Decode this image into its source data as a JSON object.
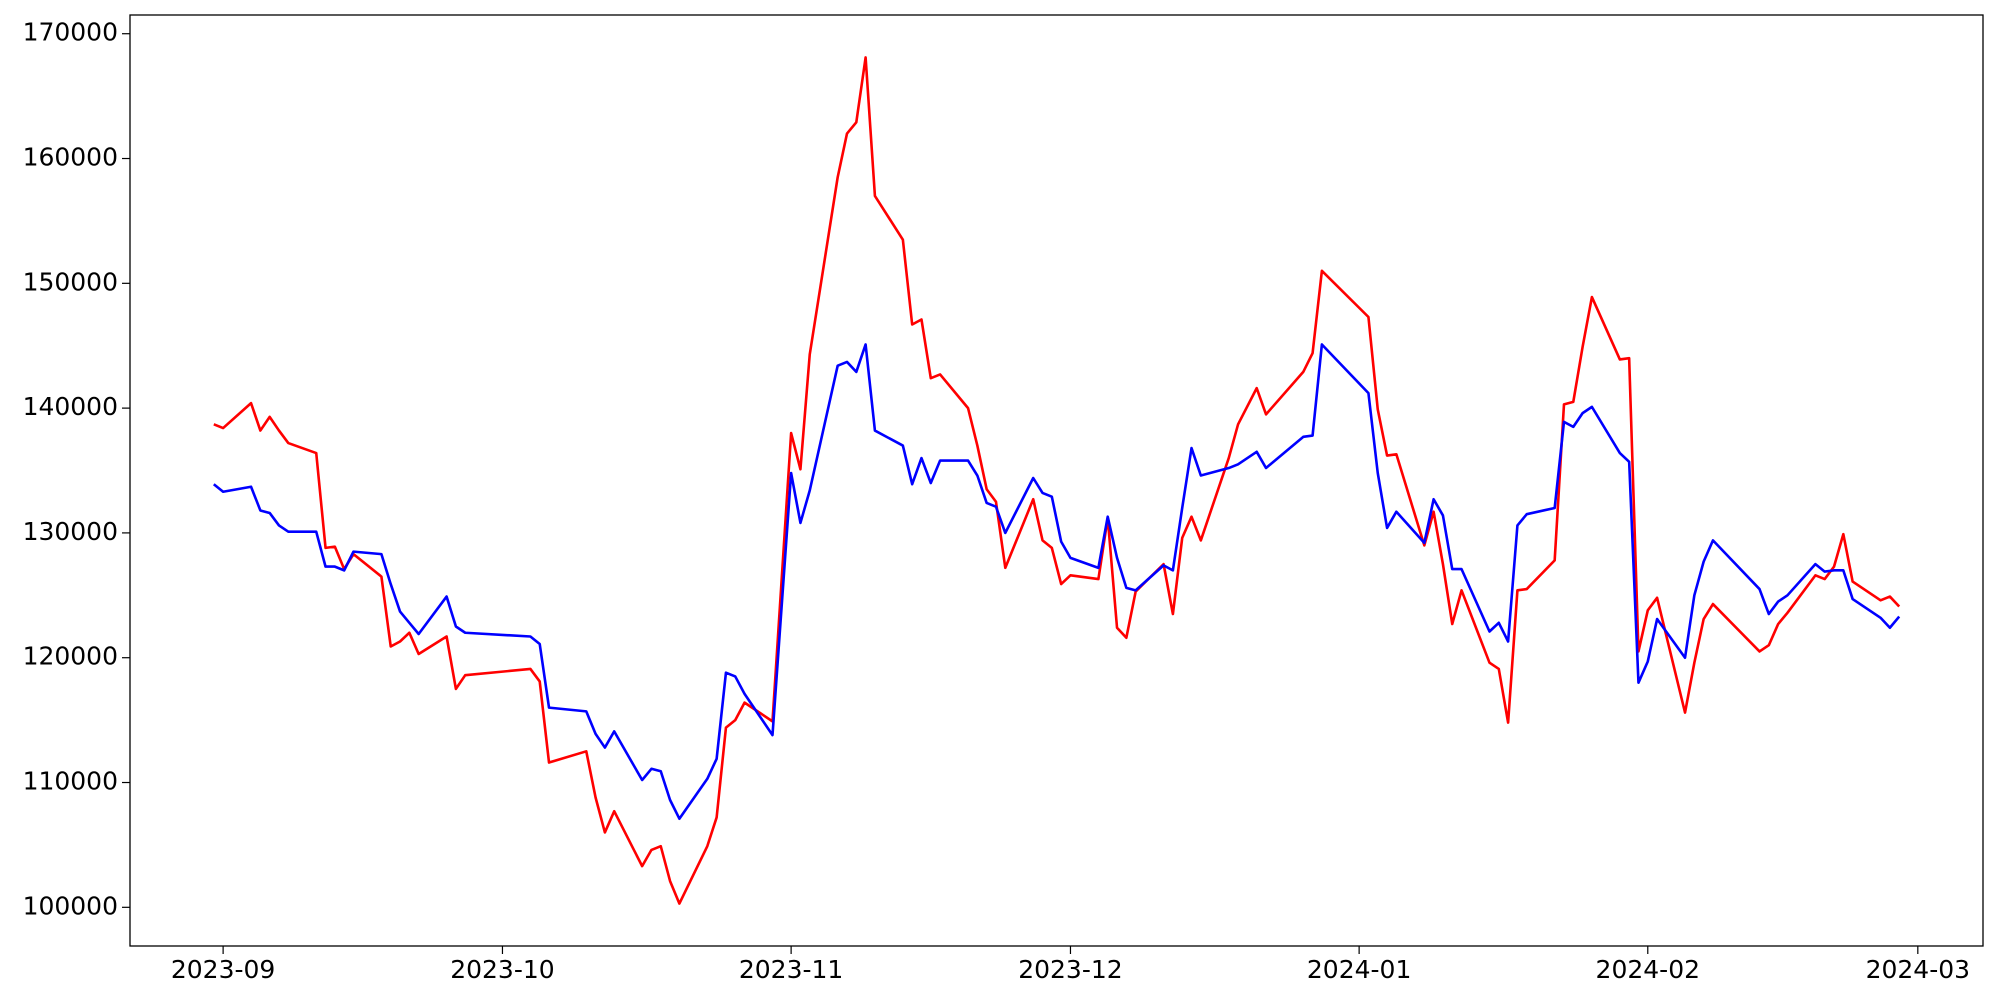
{
  "chart_data": {
    "type": "line",
    "x": [
      -1,
      0,
      3,
      4,
      5,
      6,
      7,
      10,
      11,
      12,
      13,
      14,
      17,
      18,
      19,
      20,
      21,
      24,
      25,
      26,
      33,
      34,
      35,
      39,
      40,
      41,
      42,
      45,
      46,
      47,
      48,
      49,
      52,
      53,
      54,
      55,
      56,
      59,
      61,
      62,
      63,
      66,
      67,
      68,
      69,
      70,
      73,
      74,
      75,
      76,
      77,
      80,
      81,
      82,
      83,
      84,
      87,
      88,
      89,
      90,
      91,
      94,
      95,
      96,
      97,
      98,
      101,
      102,
      103,
      104,
      105,
      108,
      109,
      111,
      112,
      116,
      117,
      118,
      123,
      124,
      125,
      126,
      129,
      130,
      131,
      132,
      133,
      136,
      137,
      138,
      139,
      140,
      143,
      144,
      145,
      146,
      147,
      150,
      151,
      152,
      153,
      154,
      157,
      158,
      159,
      160,
      165,
      166,
      167,
      168,
      171,
      172,
      173,
      174,
      175,
      178,
      179,
      180
    ],
    "series": [
      {
        "color": "#ff0000",
        "values": [
          138700,
          138400,
          140400,
          138200,
          139300,
          138200,
          137200,
          136400,
          128800,
          128900,
          127100,
          128300,
          126500,
          120900,
          121300,
          122000,
          120300,
          121700,
          117500,
          118600,
          119100,
          118100,
          111600,
          112500,
          108800,
          106000,
          107700,
          103300,
          104600,
          104900,
          102100,
          100300,
          104900,
          107200,
          114400,
          115000,
          116400,
          114900,
          138000,
          135100,
          144300,
          158500,
          162000,
          162900,
          168100,
          157000,
          153500,
          146700,
          147100,
          142400,
          142700,
          140000,
          137000,
          133500,
          132500,
          127200,
          132700,
          129400,
          128800,
          125900,
          126600,
          126300,
          131200,
          122400,
          121600,
          125300,
          127500,
          123500,
          129600,
          131300,
          129400,
          136000,
          138700,
          141600,
          139500,
          142900,
          144400,
          151000,
          147300,
          139900,
          136200,
          136300,
          129000,
          131700,
          127500,
          122700,
          125400,
          119600,
          119100,
          114800,
          125400,
          125500,
          127800,
          140300,
          140500,
          144900,
          148900,
          143900,
          144000,
          120500,
          123800,
          124800,
          115600,
          119600,
          123100,
          124300,
          120500,
          121000,
          122700,
          123600,
          126600,
          126300,
          127300,
          129900,
          126100,
          124600,
          124900,
          124100
        ]
      },
      {
        "color": "#0000ff",
        "values": [
          133900,
          133300,
          133700,
          131800,
          131600,
          130600,
          130100,
          130100,
          127300,
          127300,
          127000,
          128500,
          128300,
          125900,
          123700,
          122800,
          121900,
          124900,
          122500,
          122000,
          121700,
          121100,
          116000,
          115700,
          113900,
          112800,
          114100,
          110200,
          111100,
          110900,
          108600,
          107100,
          110300,
          111900,
          118800,
          118500,
          117100,
          113800,
          134800,
          130800,
          133400,
          143400,
          143700,
          142900,
          145100,
          138200,
          137000,
          133900,
          136000,
          134000,
          135800,
          135800,
          134600,
          132400,
          132100,
          130000,
          134400,
          133200,
          132900,
          129300,
          128000,
          127200,
          131300,
          128000,
          125600,
          125400,
          127400,
          127000,
          132000,
          136800,
          134600,
          135200,
          135500,
          136500,
          135200,
          137700,
          137800,
          145100,
          141200,
          134800,
          130400,
          131700,
          129200,
          132700,
          131400,
          127100,
          127100,
          122100,
          122800,
          121300,
          130600,
          131500,
          132000,
          138900,
          138500,
          139600,
          140100,
          136400,
          135700,
          118000,
          119700,
          123100,
          120000,
          125000,
          127700,
          129400,
          125500,
          123500,
          124500,
          125000,
          127500,
          126900,
          127000,
          127000,
          124700,
          123200,
          122400,
          123300
        ]
      }
    ],
    "xlim": [
      -10,
      189
    ],
    "xticks": [
      {
        "value": 0,
        "label": "2023-09"
      },
      {
        "value": 30,
        "label": "2023-10"
      },
      {
        "value": 61,
        "label": "2023-11"
      },
      {
        "value": 91,
        "label": "2023-12"
      },
      {
        "value": 122,
        "label": "2024-01"
      },
      {
        "value": 153,
        "label": "2024-02"
      },
      {
        "value": 182,
        "label": "2024-03"
      }
    ],
    "ylim": [
      96900,
      171500
    ],
    "yticks": [
      100000,
      110000,
      120000,
      130000,
      140000,
      150000,
      160000,
      170000
    ]
  }
}
